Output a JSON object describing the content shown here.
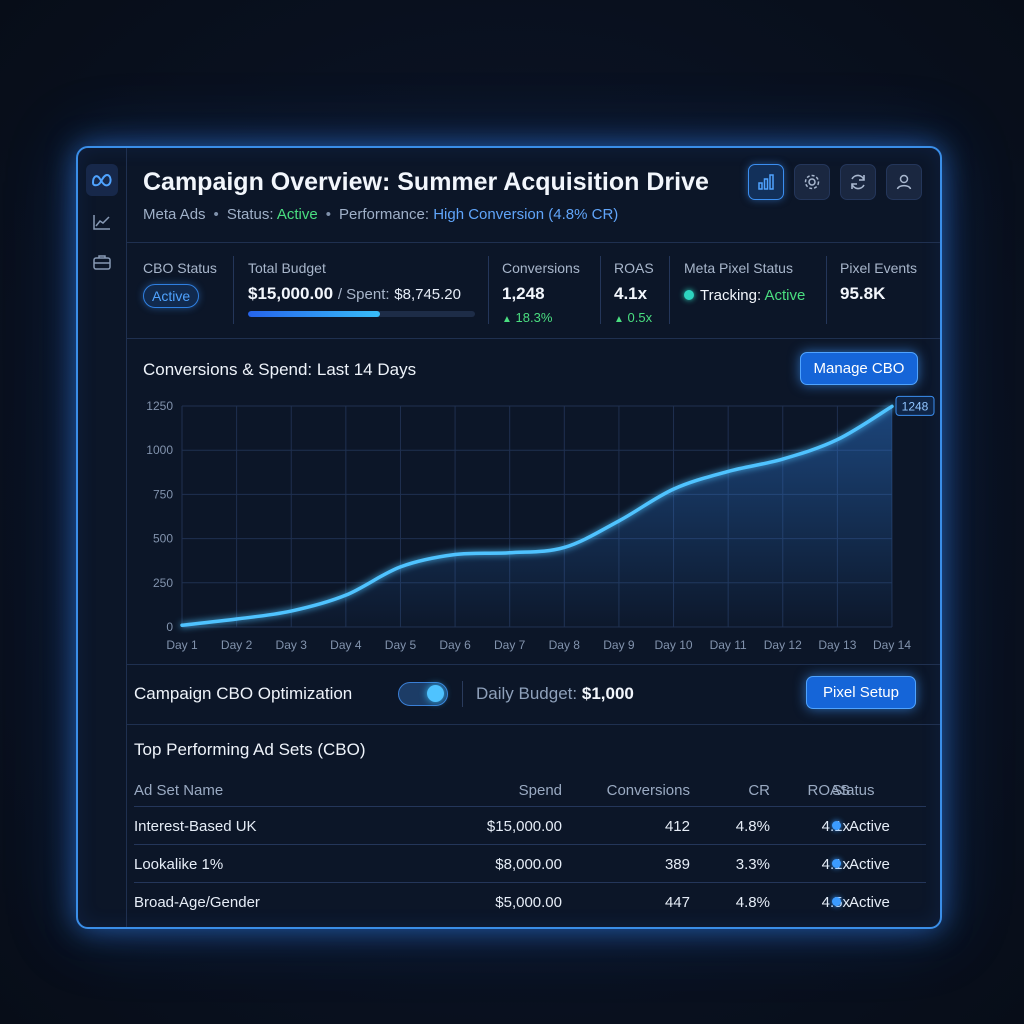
{
  "header": {
    "title": "Campaign Overview: Summer Acquisition Drive",
    "platform": "Meta Ads",
    "status_label": "Status:",
    "status_value": "Active",
    "performance_label": "Performance:",
    "performance_value": "High Conversion (4.8% CR)"
  },
  "rail": {
    "icons": [
      "meta-logo",
      "trend-chart",
      "briefcase"
    ]
  },
  "header_buttons": [
    "bar-chart",
    "settings-gear",
    "refresh",
    "user-profile"
  ],
  "stats": {
    "cbo": {
      "label": "CBO Status",
      "value": "Active"
    },
    "budget": {
      "label": "Total Budget",
      "value": "$15,000.00",
      "spent_label": "/ Spent:",
      "spent_value": "$8,745.20",
      "progress": 0.583
    },
    "conversions": {
      "label": "Conversions",
      "value": "1,248",
      "delta": "18.3%"
    },
    "roas": {
      "label": "ROAS",
      "value": "4.1x",
      "delta": "0.5x"
    },
    "pixel_status": {
      "label": "Meta Pixel Status",
      "tracking_label": "Tracking:",
      "tracking_value": "Active"
    },
    "pixel_events": {
      "label": "Pixel Events",
      "value": "95.8K"
    }
  },
  "chart_section": {
    "title": "Conversions & Spend: Last 14 Days",
    "manage_button": "Manage CBO"
  },
  "chart_data": {
    "type": "area",
    "x": [
      "Day 1",
      "Day 2",
      "Day 3",
      "Day 4",
      "Day 5",
      "Day 6",
      "Day 7",
      "Day 8",
      "Day 9",
      "Day 10",
      "Day 11",
      "Day 12",
      "Day 13",
      "Day 14"
    ],
    "y": [
      10,
      45,
      90,
      180,
      340,
      410,
      420,
      450,
      600,
      780,
      880,
      950,
      1060,
      1248
    ],
    "yticks": [
      0,
      250,
      500,
      750,
      1000,
      1250
    ],
    "ylim": [
      0,
      1250
    ],
    "grid": true,
    "end_label": "1248",
    "color": "#4fc3ff"
  },
  "optimization": {
    "label": "Campaign CBO Optimization",
    "toggle_on": true,
    "daily_budget_label": "Daily Budget:",
    "daily_budget_value": "$1,000",
    "pixel_setup_button": "Pixel Setup"
  },
  "table": {
    "title": "Top Performing Ad Sets (CBO)",
    "columns": [
      "Ad Set Name",
      "Spend",
      "Conversions",
      "CR",
      "ROAS",
      "Status"
    ],
    "rows": [
      {
        "name": "Interest-Based UK",
        "spend": "$15,000.00",
        "conversions": "412",
        "cr": "4.8%",
        "roas": "4.1x",
        "status": "Active"
      },
      {
        "name": "Lookalike 1%",
        "spend": "$8,000.00",
        "conversions": "389",
        "cr": "3.3%",
        "roas": "4.1x",
        "status": "Active"
      },
      {
        "name": "Broad-Age/Gender",
        "spend": "$5,000.00",
        "conversions": "447",
        "cr": "4.8%",
        "roas": "4.5x",
        "status": "Active"
      }
    ]
  }
}
